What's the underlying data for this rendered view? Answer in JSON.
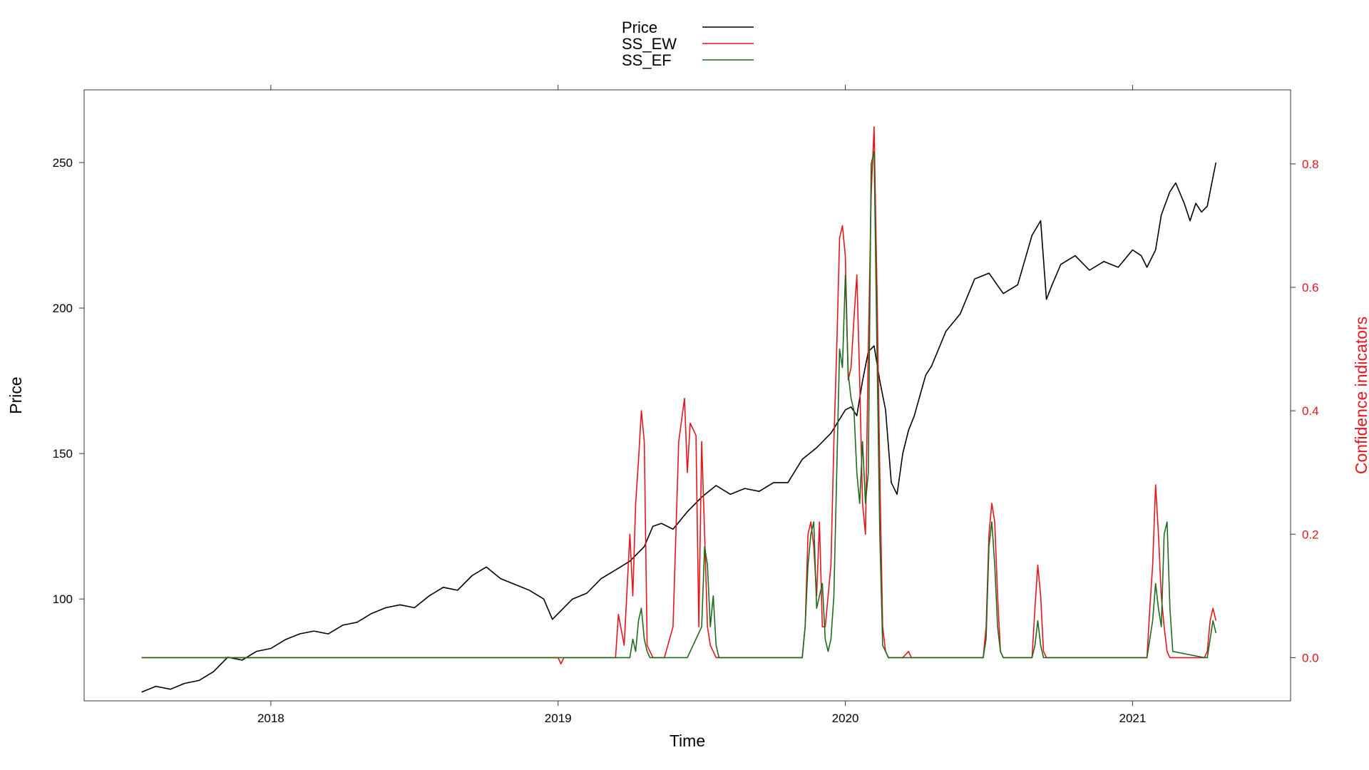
{
  "chart_data": {
    "type": "line",
    "title": "",
    "xlabel": "Time",
    "ylabel": "Price",
    "y2label": "Confidence indicators",
    "xlim": [
      2017.35,
      2021.55
    ],
    "ylim": [
      65,
      275
    ],
    "y2lim": [
      -0.07,
      0.92
    ],
    "x_ticks": [
      2018,
      2019,
      2020,
      2021
    ],
    "y_ticks": [
      100,
      150,
      200,
      250
    ],
    "y2_ticks": [
      0.0,
      0.2,
      0.4,
      0.6,
      0.8
    ],
    "y2_tick_labels": [
      "0.0",
      "0.2",
      "0.4",
      "0.6",
      "0.8"
    ],
    "legend_position": "top-center",
    "grid": false,
    "colors": {
      "price": "#000000",
      "ss_ew": "#e8141c",
      "ss_ef": "#1e6b1e",
      "axis2": "#e8141c"
    },
    "series": [
      {
        "name": "Price",
        "axis": "left",
        "x": [
          2017.55,
          2017.6,
          2017.65,
          2017.7,
          2017.75,
          2017.8,
          2017.85,
          2017.9,
          2017.95,
          2018.0,
          2018.05,
          2018.1,
          2018.15,
          2018.2,
          2018.25,
          2018.3,
          2018.35,
          2018.4,
          2018.45,
          2018.5,
          2018.55,
          2018.6,
          2018.65,
          2018.7,
          2018.75,
          2018.8,
          2018.85,
          2018.9,
          2018.95,
          2018.98,
          2019.02,
          2019.05,
          2019.1,
          2019.15,
          2019.2,
          2019.25,
          2019.3,
          2019.33,
          2019.36,
          2019.4,
          2019.45,
          2019.5,
          2019.55,
          2019.6,
          2019.65,
          2019.7,
          2019.75,
          2019.8,
          2019.85,
          2019.9,
          2019.95,
          2020.0,
          2020.02,
          2020.04,
          2020.06,
          2020.08,
          2020.1,
          2020.12,
          2020.14,
          2020.16,
          2020.18,
          2020.2,
          2020.22,
          2020.24,
          2020.26,
          2020.28,
          2020.3,
          2020.35,
          2020.4,
          2020.45,
          2020.5,
          2020.55,
          2020.6,
          2020.65,
          2020.68,
          2020.7,
          2020.72,
          2020.75,
          2020.8,
          2020.85,
          2020.9,
          2020.95,
          2021.0,
          2021.03,
          2021.05,
          2021.08,
          2021.1,
          2021.13,
          2021.15,
          2021.18,
          2021.2,
          2021.22,
          2021.24,
          2021.26,
          2021.28,
          2021.29
        ],
        "y": [
          68,
          70,
          69,
          71,
          72,
          75,
          80,
          79,
          82,
          83,
          86,
          88,
          89,
          88,
          91,
          92,
          95,
          97,
          98,
          97,
          101,
          104,
          103,
          108,
          111,
          107,
          105,
          103,
          100,
          93,
          97,
          100,
          102,
          107,
          110,
          113,
          118,
          125,
          126,
          124,
          130,
          135,
          139,
          136,
          138,
          137,
          140,
          140,
          148,
          152,
          157,
          165,
          166,
          163,
          175,
          185,
          187,
          175,
          165,
          140,
          136,
          150,
          158,
          163,
          170,
          177,
          180,
          192,
          198,
          210,
          212,
          205,
          208,
          225,
          230,
          203,
          208,
          215,
          218,
          213,
          216,
          214,
          220,
          218,
          214,
          220,
          232,
          240,
          243,
          236,
          230,
          236,
          233,
          235,
          245,
          250
        ],
        "values_note": ""
      },
      {
        "name": "SS_EW",
        "axis": "right",
        "x": [
          2017.55,
          2019.0,
          2019.01,
          2019.02,
          2019.2,
          2019.21,
          2019.23,
          2019.25,
          2019.26,
          2019.27,
          2019.28,
          2019.29,
          2019.3,
          2019.31,
          2019.32,
          2019.33,
          2019.34,
          2019.35,
          2019.37,
          2019.4,
          2019.42,
          2019.44,
          2019.45,
          2019.46,
          2019.47,
          2019.48,
          2019.49,
          2019.5,
          2019.51,
          2019.52,
          2019.53,
          2019.54,
          2019.55,
          2019.56,
          2019.57,
          2019.58,
          2019.59,
          2019.6,
          2019.62,
          2019.85,
          2019.86,
          2019.87,
          2019.88,
          2019.89,
          2019.9,
          2019.91,
          2019.92,
          2019.93,
          2019.94,
          2019.95,
          2019.96,
          2019.97,
          2019.98,
          2019.99,
          2020.0,
          2020.01,
          2020.02,
          2020.03,
          2020.04,
          2020.05,
          2020.06,
          2020.07,
          2020.08,
          2020.09,
          2020.1,
          2020.11,
          2020.12,
          2020.13,
          2020.14,
          2020.15,
          2020.16,
          2020.2,
          2020.22,
          2020.23,
          2020.24,
          2020.48,
          2020.49,
          2020.5,
          2020.51,
          2020.52,
          2020.53,
          2020.54,
          2020.55,
          2020.56,
          2020.65,
          2020.66,
          2020.67,
          2020.68,
          2020.69,
          2020.7,
          2021.05,
          2021.06,
          2021.07,
          2021.08,
          2021.09,
          2021.1,
          2021.11,
          2021.12,
          2021.13,
          2021.14,
          2021.25,
          2021.26,
          2021.27,
          2021.28,
          2021.29
        ],
        "y": [
          0,
          0,
          -0.01,
          0,
          0,
          0.07,
          0.02,
          0.2,
          0.1,
          0.25,
          0.32,
          0.4,
          0.35,
          0.02,
          0.01,
          0,
          0,
          0,
          0,
          0.05,
          0.35,
          0.42,
          0.3,
          0.38,
          0.37,
          0.36,
          0.05,
          0.35,
          0.2,
          0.05,
          0.02,
          0.01,
          0,
          0,
          0,
          0,
          0,
          0,
          0,
          0,
          0.05,
          0.2,
          0.22,
          0.18,
          0.1,
          0.22,
          0.05,
          0.05,
          0.1,
          0.15,
          0.35,
          0.5,
          0.68,
          0.7,
          0.65,
          0.45,
          0.47,
          0.55,
          0.62,
          0.45,
          0.25,
          0.2,
          0.5,
          0.75,
          0.86,
          0.6,
          0.3,
          0.05,
          0.01,
          0,
          0,
          0,
          0.01,
          0,
          0,
          0,
          0.05,
          0.2,
          0.25,
          0.22,
          0.1,
          0.01,
          0,
          0,
          0,
          0.08,
          0.15,
          0.1,
          0.01,
          0,
          0,
          0.08,
          0.15,
          0.28,
          0.2,
          0.1,
          0.05,
          0.01,
          0,
          0,
          0,
          0.01,
          0.06,
          0.08,
          0.06
        ],
        "values_note": ""
      },
      {
        "name": "SS_EF",
        "axis": "right",
        "x": [
          2017.55,
          2019.2,
          2019.25,
          2019.26,
          2019.27,
          2019.28,
          2019.29,
          2019.3,
          2019.31,
          2019.32,
          2019.45,
          2019.5,
          2019.51,
          2019.52,
          2019.53,
          2019.54,
          2019.55,
          2019.56,
          2019.57,
          2019.58,
          2019.85,
          2019.86,
          2019.87,
          2019.88,
          2019.89,
          2019.9,
          2019.91,
          2019.92,
          2019.93,
          2019.94,
          2019.95,
          2019.96,
          2019.97,
          2019.98,
          2019.99,
          2020.0,
          2020.01,
          2020.02,
          2020.03,
          2020.04,
          2020.05,
          2020.06,
          2020.07,
          2020.08,
          2020.09,
          2020.1,
          2020.11,
          2020.12,
          2020.13,
          2020.14,
          2020.15,
          2020.16,
          2020.2,
          2020.48,
          2020.49,
          2020.5,
          2020.51,
          2020.52,
          2020.53,
          2020.54,
          2020.55,
          2020.65,
          2020.66,
          2020.67,
          2020.68,
          2020.69,
          2021.05,
          2021.06,
          2021.07,
          2021.08,
          2021.09,
          2021.1,
          2021.11,
          2021.12,
          2021.13,
          2021.14,
          2021.25,
          2021.26,
          2021.27,
          2021.28,
          2021.29
        ],
        "y": [
          0,
          0,
          0,
          0.03,
          0.01,
          0.06,
          0.08,
          0.03,
          0.01,
          0,
          0,
          0.05,
          0.18,
          0.15,
          0.05,
          0.1,
          0.02,
          0,
          0,
          0,
          0,
          0.05,
          0.15,
          0.2,
          0.22,
          0.08,
          0.1,
          0.12,
          0.03,
          0.01,
          0.03,
          0.1,
          0.3,
          0.5,
          0.47,
          0.62,
          0.46,
          0.42,
          0.4,
          0.3,
          0.25,
          0.35,
          0.25,
          0.3,
          0.8,
          0.82,
          0.5,
          0.2,
          0.02,
          0.01,
          0,
          0,
          0,
          0,
          0.03,
          0.18,
          0.22,
          0.15,
          0.05,
          0.01,
          0,
          0,
          0.02,
          0.06,
          0.02,
          0,
          0,
          0.03,
          0.06,
          0.12,
          0.08,
          0.05,
          0.2,
          0.22,
          0.08,
          0.01,
          0,
          0,
          0.03,
          0.06,
          0.04
        ],
        "values_note": ""
      }
    ]
  }
}
